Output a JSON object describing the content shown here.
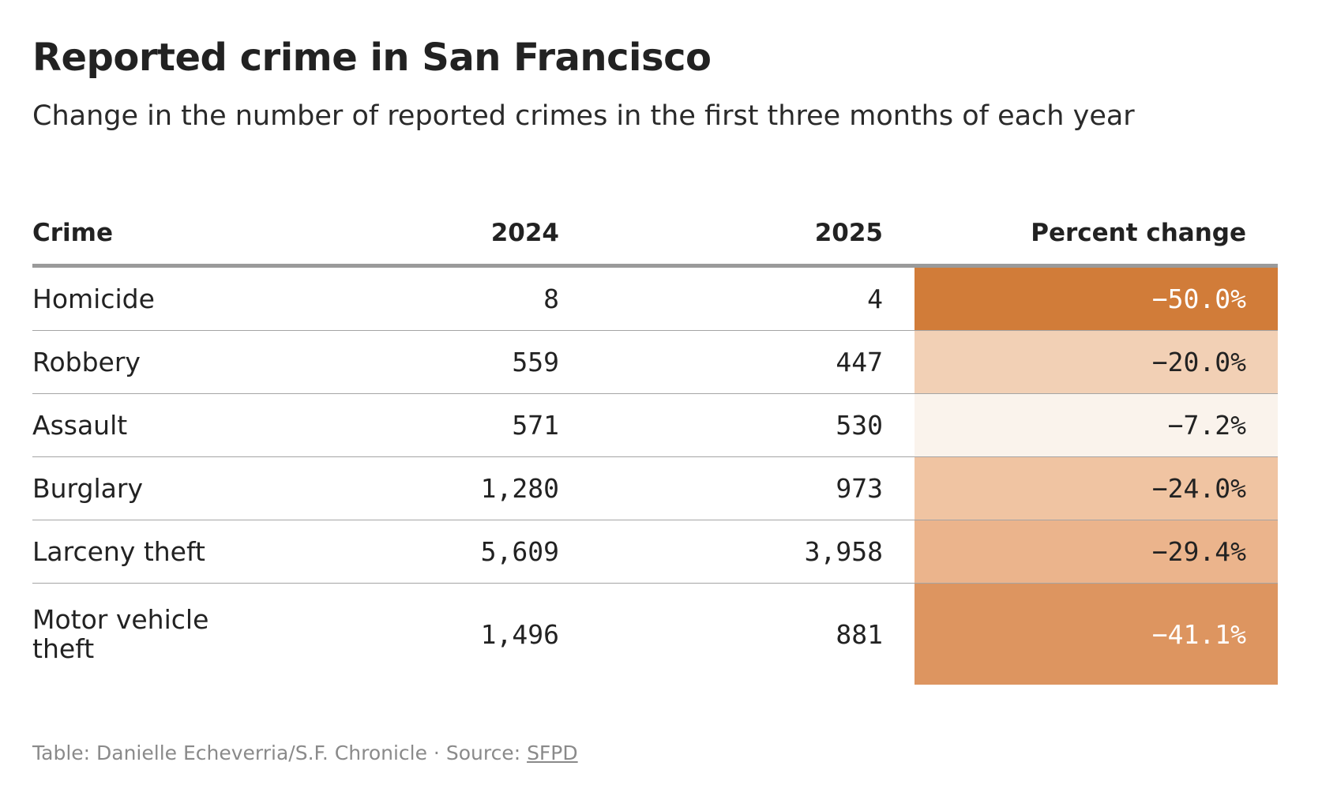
{
  "title": "Reported crime in San Francisco",
  "subtitle": "Change in the number of reported crimes in the first three months of each year",
  "table": {
    "headers": [
      "Crime",
      "2024",
      "2025",
      "Percent change"
    ],
    "rows": [
      {
        "crime": "Homicide",
        "y2024": "8",
        "y2025": "4",
        "pct": "−50.0%"
      },
      {
        "crime": "Robbery",
        "y2024": "559",
        "y2025": "447",
        "pct": "−20.0%"
      },
      {
        "crime": "Assault",
        "y2024": "571",
        "y2025": "530",
        "pct": "−7.2%"
      },
      {
        "crime": "Burglary",
        "y2024": "1,280",
        "y2025": "973",
        "pct": "−24.0%"
      },
      {
        "crime": "Larceny theft",
        "y2024": "5,609",
        "y2025": "3,958",
        "pct": "−29.4%"
      },
      {
        "crime": "Motor vehicle theft",
        "y2024": "1,496",
        "y2025": "881",
        "pct": "−41.1%"
      }
    ]
  },
  "footer": {
    "credit": "Table: Danielle Echeverria/S.F. Chronicle · Source: ",
    "source_link": "SFPD"
  },
  "chart_data": {
    "type": "table",
    "title": "Reported crime in San Francisco",
    "subtitle": "Change in the number of reported crimes in the first three months of each year",
    "columns": [
      "Crime",
      "2024",
      "2025",
      "Percent change"
    ],
    "categories": [
      "Homicide",
      "Robbery",
      "Assault",
      "Burglary",
      "Larceny theft",
      "Motor vehicle theft"
    ],
    "series": [
      {
        "name": "2024",
        "values": [
          8,
          559,
          571,
          1280,
          5609,
          1496
        ]
      },
      {
        "name": "2025",
        "values": [
          4,
          447,
          530,
          973,
          3958,
          881
        ]
      },
      {
        "name": "Percent change",
        "values": [
          -50.0,
          -20.0,
          -7.2,
          -24.0,
          -29.4,
          -41.1
        ]
      }
    ],
    "heat_colors": [
      "#d17c39",
      "#f2d0b5",
      "#faf3ec",
      "#f0c4a2",
      "#ebb48c",
      "#dd9560"
    ]
  }
}
